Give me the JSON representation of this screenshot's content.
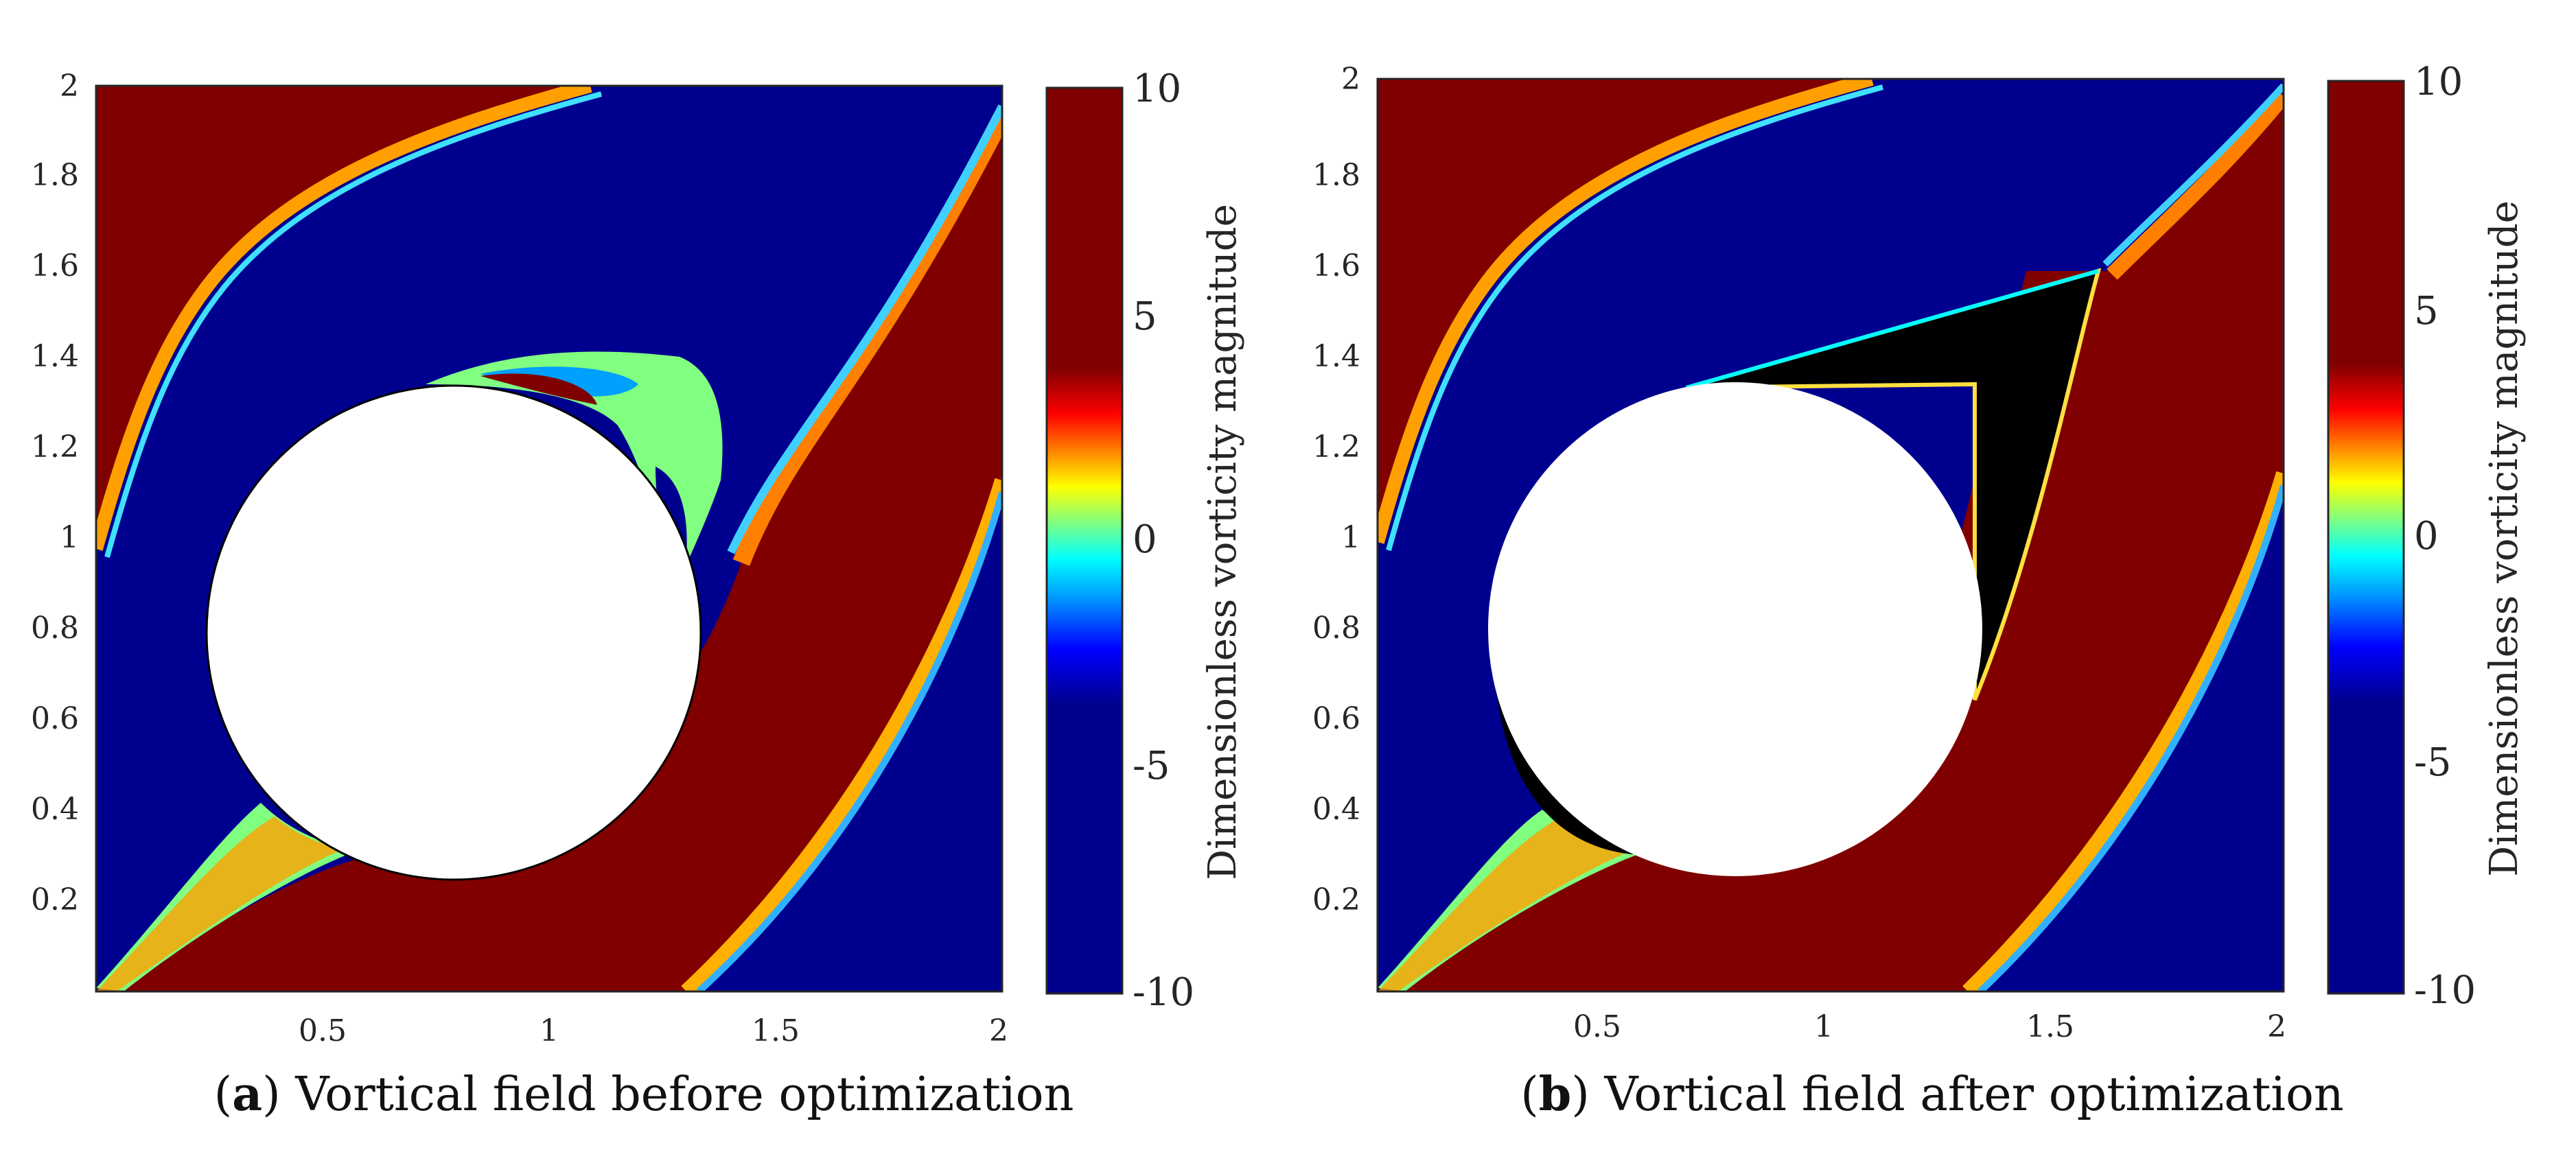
{
  "chart_data": [
    {
      "type": "heatmap",
      "subtype": "filled-contour",
      "panel_label": "a",
      "caption": "Vortical field before optimization",
      "xlim": [
        0,
        2
      ],
      "ylim": [
        0,
        2
      ],
      "xticks": [
        "0.5",
        "1",
        "1.5",
        "2"
      ],
      "yticks": [
        "0.2",
        "0.4",
        "0.6",
        "0.8",
        "1",
        "1.2",
        "1.4",
        "1.6",
        "1.8",
        "2"
      ],
      "colorbar": {
        "label": "Dimensionless vorticity magnitude",
        "range": [
          -10,
          10
        ],
        "ticks": [
          "10",
          "5",
          "0",
          "-5",
          "-10"
        ],
        "colormap": "jet"
      },
      "obstacle": {
        "shape": "circle",
        "center": [
          0.8,
          0.8
        ],
        "radius": 0.54
      },
      "optimized_region": false
    },
    {
      "type": "heatmap",
      "subtype": "filled-contour",
      "panel_label": "b",
      "caption": "Vortical field after optimization",
      "xlim": [
        0,
        2
      ],
      "ylim": [
        0,
        2
      ],
      "xticks": [
        "0.5",
        "1",
        "1.5",
        "2"
      ],
      "yticks": [
        "0.2",
        "0.4",
        "0.6",
        "0.8",
        "1",
        "1.2",
        "1.4",
        "1.6",
        "1.8",
        "2"
      ],
      "colorbar": {
        "label": "Dimensionless vorticity magnitude",
        "range": [
          -10,
          10
        ],
        "ticks": [
          "10",
          "5",
          "0",
          "-5",
          "-10"
        ],
        "colormap": "jet"
      },
      "obstacle": {
        "shape": "circle",
        "center": [
          0.8,
          0.8
        ],
        "radius": 0.54
      },
      "optimized_region": true
    }
  ],
  "colors": {
    "jet_low": "#00008f",
    "jet_high": "#800000",
    "optimized_fill": "#000000"
  }
}
